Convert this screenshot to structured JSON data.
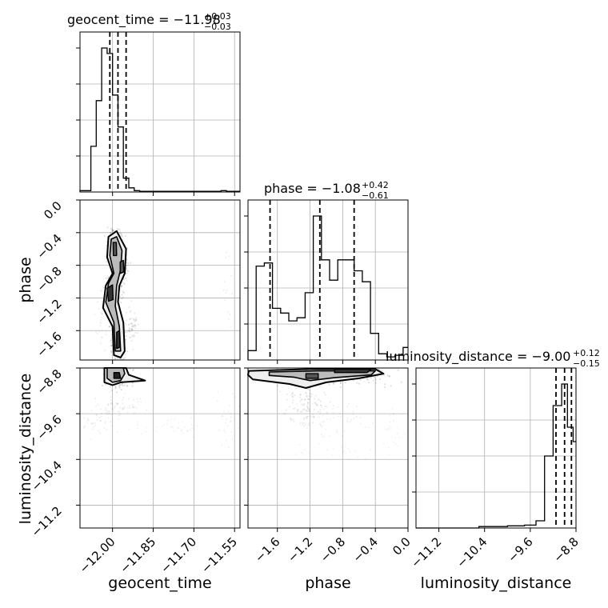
{
  "chart_data": {
    "type": "corner",
    "parameters": [
      "geocent_time",
      "phase",
      "luminosity_distance"
    ],
    "titles": [
      {
        "text": "geocent_time = −11.98",
        "plus": "+0.03",
        "minus": "−0.03"
      },
      {
        "text": "phase = −1.08",
        "plus": "+0.42",
        "minus": "−0.61"
      },
      {
        "text": "luminosity_distance = −9.00",
        "plus": "+0.12",
        "minus": "−0.15"
      }
    ],
    "ranges": {
      "geocent_time": [
        -12.12,
        -11.53
      ],
      "phase": [
        -1.96,
        0.0
      ],
      "luminosity_distance": [
        -11.6,
        -8.8
      ]
    },
    "ticks": {
      "geocent_time": [
        -12.0,
        -11.85,
        -11.7,
        -11.55
      ],
      "phase": [
        -1.6,
        -1.2,
        -0.8,
        -0.4,
        0.0
      ],
      "luminosity_distance": [
        -11.2,
        -10.4,
        -9.6,
        -8.8
      ]
    },
    "tick_labels": {
      "geocent_time": [
        "−12.00",
        "−11.85",
        "−11.70",
        "−11.55"
      ],
      "phase": [
        "−1.6",
        "−1.2",
        "−0.8",
        "−0.4",
        "0.0"
      ],
      "luminosity_distance": [
        "−11.2",
        "−10.4",
        "−9.6",
        "−8.8"
      ]
    },
    "quantiles": {
      "geocent_time": [
        -12.01,
        -11.98,
        -11.95
      ],
      "phase": [
        -1.69,
        -1.08,
        -0.66
      ],
      "luminosity_distance": [
        -9.15,
        -9.0,
        -8.88
      ]
    },
    "histograms": {
      "geocent_time": {
        "edges": [
          -12.12,
          -12.08,
          -12.06,
          -12.04,
          -12.02,
          -12.0,
          -11.98,
          -11.96,
          -11.94,
          -11.92,
          -11.9,
          -11.88,
          -11.86,
          -11.84,
          -11.82,
          -11.6,
          -11.58,
          -11.53
        ],
        "counts": [
          0.01,
          0.33,
          0.66,
          1.04,
          1.0,
          0.7,
          0.47,
          0.1,
          0.03,
          0.01,
          0.005,
          0.005,
          0.005,
          0.005,
          0.005,
          0.01,
          0.005
        ]
      },
      "phase": {
        "edges": [
          -1.96,
          -1.86,
          -1.76,
          -1.66,
          -1.56,
          -1.46,
          -1.36,
          -1.26,
          -1.16,
          -1.06,
          -0.96,
          -0.86,
          -0.76,
          -0.66,
          -0.56,
          -0.46,
          -0.36,
          -0.26,
          -0.16,
          -0.06,
          0.0
        ],
        "counts": [
          0.06,
          0.6,
          0.62,
          0.33,
          0.3,
          0.25,
          0.27,
          0.43,
          0.92,
          0.64,
          0.51,
          0.64,
          0.64,
          0.57,
          0.5,
          0.17,
          0.04,
          0.02,
          0.03,
          0.08
        ]
      },
      "luminosity_distance": {
        "edges": [
          -11.6,
          -10.5,
          -10.0,
          -9.7,
          -9.5,
          -9.35,
          -9.2,
          -9.05,
          -8.95,
          -8.85,
          -8.8
        ],
        "counts": [
          0.0,
          0.01,
          0.015,
          0.02,
          0.05,
          0.5,
          0.85,
          1.0,
          0.7,
          0.6
        ]
      }
    }
  }
}
